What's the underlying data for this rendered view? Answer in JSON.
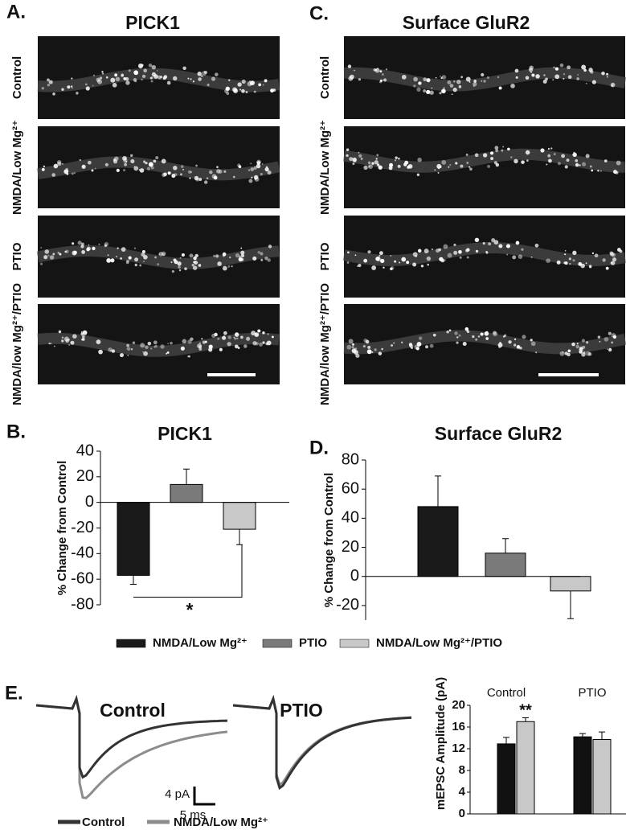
{
  "panel_labels": [
    "A.",
    "B.",
    "C.",
    "D.",
    "E."
  ],
  "micrographs": [
    {
      "title": "PICK1",
      "rows": [
        "Control",
        "NMDA/Low Mg²⁺",
        "PTIO",
        "NMDA/low Mg²⁺/PTIO"
      ]
    },
    {
      "title": "Surface GluR2",
      "rows": [
        "Control",
        "NMDA/Low Mg²⁺",
        "PTIO",
        "NMDA/low Mg²⁺/PTIO"
      ]
    }
  ],
  "shared_legend": {
    "names": [
      "NMDA/Low Mg²⁺",
      "PTIO",
      "NMDA/Low Mg²⁺/PTIO"
    ],
    "colors": [
      "#1a1a1a",
      "#7a7a7a",
      "#c8c8c8"
    ]
  },
  "chart_data": [
    {
      "type": "bar",
      "title": "PICK1",
      "y_label": "% Change from Control",
      "values": [
        -57,
        14,
        -21
      ],
      "errors": [
        7,
        12,
        12
      ],
      "ylim": [
        -80,
        40
      ],
      "yticks": [
        -80,
        -60,
        -40,
        -20,
        0,
        20,
        40
      ],
      "annotation": "*"
    },
    {
      "type": "bar",
      "title": "Surface GluR2",
      "y_label": "% Change from Control",
      "values": [
        48,
        16,
        -10
      ],
      "errors": [
        21,
        10,
        19
      ],
      "ylim": [
        -30,
        80
      ],
      "yticks": [
        -20,
        0,
        20,
        40,
        60,
        80
      ]
    },
    {
      "type": "grouped_bar",
      "y_label": "mEPSC Amplitude (pA)",
      "categories": [
        "Control",
        "PTIO"
      ],
      "series": [
        {
          "color": "#111111",
          "values": [
            12.9,
            14.2
          ],
          "errors": [
            1.2,
            0.6
          ]
        },
        {
          "color": "#c8c8c8",
          "values": [
            17.0,
            13.7
          ],
          "errors": [
            0.7,
            1.4
          ]
        }
      ],
      "ylim": [
        0,
        20
      ],
      "yticks": [
        0,
        4,
        8,
        12,
        16,
        20
      ],
      "annotation": "**"
    }
  ],
  "traces": {
    "titles": [
      "Control",
      "PTIO"
    ],
    "scale_bar": {
      "y_label": "4 pA",
      "x_label": "5 ms"
    },
    "legend": [
      {
        "name": "Control",
        "color": "#333333"
      },
      {
        "name": "NMDA/Low Mg²⁺",
        "color": "#8c8c8c"
      }
    ]
  }
}
